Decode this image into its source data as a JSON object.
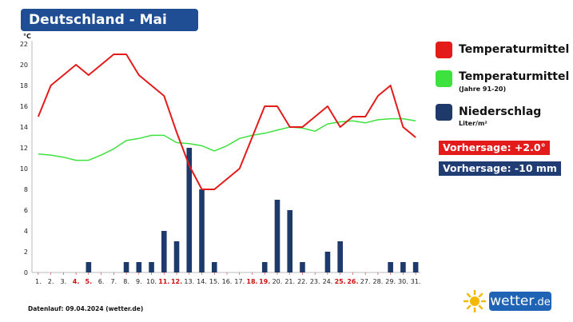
{
  "header": {
    "title": "Deutschland - Mai"
  },
  "legend": {
    "temp": {
      "label": "Temperaturmittel",
      "color": "#e31b1b"
    },
    "clim": {
      "label": "Temperaturmittel",
      "sub": "(Jahre 91-20)",
      "color": "#3ee23e"
    },
    "precip": {
      "label": "Niederschlag",
      "sub": "Liter/m²",
      "color": "#1d3a6b"
    }
  },
  "forecast": {
    "temp_label": "Vorhersage: +2.0°",
    "temp_color": "#e31b1b",
    "precip_label": "Vorhersage: -10 mm",
    "precip_color": "#1f3c73"
  },
  "footer": {
    "source": "Datenlauf: 09.04.2024 (wetter.de)"
  },
  "brand": {
    "name": "wetter",
    "suffix": ".de",
    "icon": "sun-icon"
  },
  "chart_data": {
    "type": "bar+line",
    "yunit": "°C",
    "ylim": [
      0,
      22
    ],
    "yticks": [
      0,
      2,
      4,
      6,
      8,
      10,
      12,
      14,
      16,
      18,
      20,
      22
    ],
    "grid": false,
    "categories": [
      "1.",
      "2.",
      "3.",
      "4.",
      "5.",
      "6.",
      "7.",
      "8.",
      "9.",
      "10.",
      "11.",
      "12.",
      "13.",
      "14.",
      "15.",
      "16.",
      "17.",
      "18.",
      "19.",
      "20.",
      "21.",
      "22.",
      "23.",
      "24.",
      "25.",
      "26.",
      "27.",
      "28.",
      "29.",
      "30.",
      "31."
    ],
    "highlighted_days": [
      "4.",
      "5.",
      "11.",
      "12.",
      "18.",
      "19.",
      "25.",
      "26."
    ],
    "series": [
      {
        "name": "Niederschlag",
        "type": "bar",
        "values": [
          0,
          0,
          0,
          0,
          1,
          0,
          0,
          1,
          1,
          1,
          4,
          3,
          12,
          8,
          1,
          0,
          0,
          0,
          1,
          7,
          6,
          1,
          0,
          2,
          3,
          0,
          0,
          0,
          1,
          1,
          1
        ]
      },
      {
        "name": "Temperaturmittel (Jahre 91-20)",
        "type": "line",
        "values": [
          11.4,
          11.3,
          11.1,
          10.8,
          10.8,
          11.3,
          11.9,
          12.7,
          12.9,
          13.2,
          13.2,
          12.5,
          12.4,
          12.2,
          11.7,
          12.2,
          12.9,
          13.2,
          13.4,
          13.7,
          14.0,
          13.9,
          13.6,
          14.3,
          14.5,
          14.6,
          14.4,
          14.7,
          14.8,
          14.8,
          14.6
        ]
      },
      {
        "name": "Temperaturmittel",
        "type": "line",
        "values": [
          15,
          18,
          19,
          20,
          19,
          20,
          21,
          21,
          19,
          18,
          17,
          13.5,
          10.3,
          8,
          8,
          9,
          10,
          13,
          16,
          16,
          14,
          14,
          15,
          16,
          14,
          15,
          15,
          17,
          18,
          14,
          13
        ]
      }
    ]
  }
}
